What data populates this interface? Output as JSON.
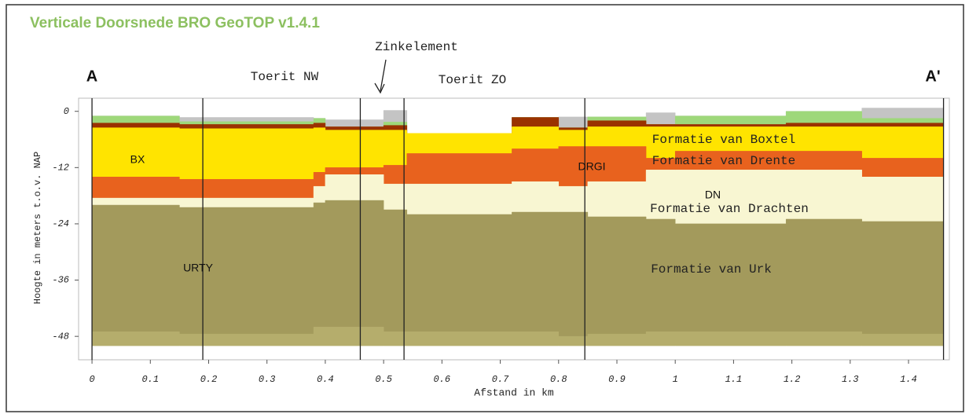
{
  "chart_data": {
    "type": "section",
    "title": "Verticale Doorsnede BRO GeoTOP v1.4.1",
    "xlabel": "Afstand in km",
    "ylabel": "Hoogte in meters t.o.v. NAP",
    "xlim": [
      -0.023,
      1.47
    ],
    "ylim": [
      -53,
      2.8
    ],
    "xticks": [
      0,
      0.1,
      0.2,
      0.3,
      0.4,
      0.5,
      0.6,
      0.7,
      0.8,
      0.9,
      1,
      1.1,
      1.2,
      1.3,
      1.4
    ],
    "yticks": [
      0,
      -12,
      -24,
      -36,
      -48
    ],
    "x": [
      0,
      0.15,
      0.38,
      0.4,
      0.5,
      0.54,
      0.72,
      0.8,
      0.85,
      0.95,
      1.0,
      1.19,
      1.32,
      1.46
    ],
    "boundaries": [
      [
        -1,
        -1.3,
        -1.5,
        -1.8,
        0.2,
        -4.7,
        -1.3,
        -1.2,
        -1.2,
        -0.3,
        -1,
        0,
        0.7,
        0.7
      ],
      [
        -1,
        -2.2,
        -1.5,
        -3.3,
        -2.3,
        -4.7,
        -1.3,
        -3.5,
        -1.2,
        -2.8,
        -1,
        0,
        -1.5,
        -1.5
      ],
      [
        -2.5,
        -2.8,
        -2.5,
        -3.3,
        -3,
        -4.7,
        -1.3,
        -3.5,
        -2,
        -2.8,
        -2.8,
        -2.5,
        -2.5,
        -2.5
      ],
      [
        -3.5,
        -3.7,
        -3.5,
        -4,
        -4,
        -4.7,
        -3.3,
        -4,
        -3.3,
        -3.3,
        -3.3,
        -3.3,
        -3.3,
        -3.3
      ],
      [
        -14,
        -14.5,
        -13,
        -12,
        -11.5,
        -9,
        -8,
        -7.5,
        -7.5,
        -10,
        -8.5,
        -8.5,
        -10,
        -10
      ],
      [
        -18.5,
        -18.5,
        -16,
        -13.5,
        -15.5,
        -15.5,
        -15,
        -16,
        -15,
        -12.5,
        -12.5,
        -12.5,
        -14,
        -14
      ],
      [
        -20,
        -20.5,
        -19.5,
        -19,
        -21,
        -22,
        -21.5,
        -21.5,
        -22.5,
        -23,
        -24,
        -23,
        -23.5,
        -23.5
      ],
      [
        -47,
        -47.5,
        -46,
        -46,
        -47,
        -47,
        -47,
        -48,
        -47.5,
        -47,
        -47,
        -47,
        -47.5,
        -47.5
      ],
      [
        -50,
        -50,
        -50,
        -50,
        -50,
        -50,
        -50,
        -50,
        -50,
        -50,
        -50,
        -50,
        -50,
        -50
      ]
    ],
    "layer_colors": [
      "#c4c4c4",
      "#9ed87a",
      "#9a3200",
      "#ffe400",
      "#e8621e",
      "#f8f6d2",
      "#a39a5c",
      "#b5ad6c"
    ],
    "markers": [
      0,
      0.19,
      0.46,
      0.535,
      0.845,
      1.46
    ],
    "annotations": [
      "A",
      "A'",
      "Toerit NW",
      "Zinkelement",
      "Toerit ZO",
      "BX",
      "DRGI",
      "DN",
      "URTY",
      "Formatie van Boxtel",
      "Formatie van Drente",
      "Formatie van Drachten",
      "Formatie van Urk"
    ]
  }
}
